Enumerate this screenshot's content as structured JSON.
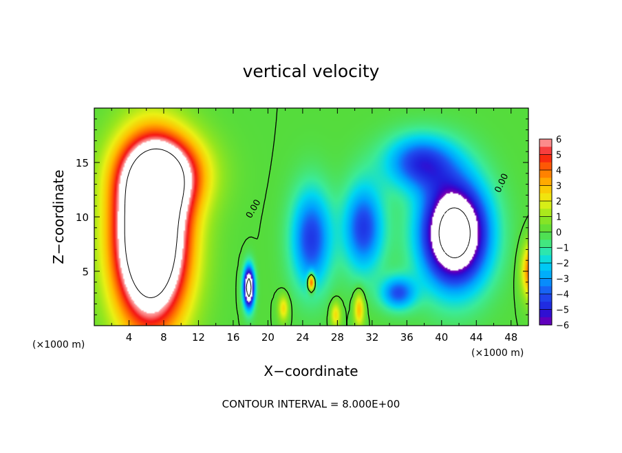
{
  "chart_data": {
    "type": "heatmap",
    "title": "vertical velocity",
    "xlabel": "X−coordinate",
    "ylabel": "Z−coordinate",
    "x_unit_left": "(×1000 m)",
    "x_unit_right": "(×1000 m)",
    "footer": "CONTOUR INTERVAL = 8.000E+00",
    "xlim": [
      0,
      50
    ],
    "ylim": [
      0,
      20
    ],
    "x_ticks": [
      4,
      8,
      12,
      16,
      20,
      24,
      28,
      32,
      36,
      40,
      44,
      48
    ],
    "y_ticks": [
      5,
      10,
      15
    ],
    "colorbar": {
      "range": [
        -6,
        6
      ],
      "tick_values": [
        6,
        5,
        4,
        3,
        2,
        1,
        0,
        -1,
        -2,
        -3,
        -4,
        -5,
        -6
      ],
      "tick_labels": [
        "6",
        "5",
        "4",
        "3",
        "2",
        "1",
        "0",
        "−1",
        "−2",
        "−3",
        "−4",
        "−5",
        "−6"
      ],
      "saturation_color": "#ffffff"
    },
    "contour_labels": [
      {
        "text": "0.00",
        "x": 18.6,
        "y": 10.6
      },
      {
        "text": "0.00",
        "x": 47.2,
        "y": 13.0
      }
    ],
    "features": [
      {
        "kind": "updraft",
        "x": 6.5,
        "z": 8.0,
        "sx": 4.2,
        "sz": 7.8,
        "amp": 13
      },
      {
        "kind": "updraft",
        "x": 8.0,
        "z": 14.0,
        "sx": 4.8,
        "sz": 3.5,
        "amp": 6
      },
      {
        "kind": "updraft",
        "x": 50.5,
        "z": 5.0,
        "sx": 1.2,
        "sz": 2.5,
        "amp": 5
      },
      {
        "kind": "updraft",
        "x": 25.0,
        "z": 4.0,
        "sx": 0.4,
        "sz": 0.8,
        "amp": 6
      },
      {
        "kind": "updraft",
        "x": 21.8,
        "z": 1.6,
        "sx": 0.6,
        "sz": 1.2,
        "amp": 2.5
      },
      {
        "kind": "updraft",
        "x": 27.8,
        "z": 1.0,
        "sx": 0.6,
        "sz": 1.2,
        "amp": 2.5
      },
      {
        "kind": "updraft",
        "x": 30.5,
        "z": 1.5,
        "sx": 0.6,
        "sz": 1.6,
        "amp": 3
      },
      {
        "kind": "downdraft",
        "x": 41.5,
        "z": 8.5,
        "sx": 3.8,
        "sz": 4.8,
        "amp": -10
      },
      {
        "kind": "downdraft",
        "x": 37.5,
        "z": 15.0,
        "sx": 4.0,
        "sz": 2.5,
        "amp": -4.5
      },
      {
        "kind": "downdraft",
        "x": 25.0,
        "z": 8.0,
        "sx": 2.3,
        "sz": 4.5,
        "amp": -4.5
      },
      {
        "kind": "downdraft",
        "x": 31.0,
        "z": 9.0,
        "sx": 2.3,
        "sz": 4.0,
        "amp": -4.5
      },
      {
        "kind": "downdraft",
        "x": 17.8,
        "z": 3.5,
        "sx": 0.6,
        "sz": 1.8,
        "amp": -10
      },
      {
        "kind": "downdraft",
        "x": 35.0,
        "z": 3.0,
        "sx": 2.0,
        "sz": 1.5,
        "amp": -4
      }
    ]
  }
}
